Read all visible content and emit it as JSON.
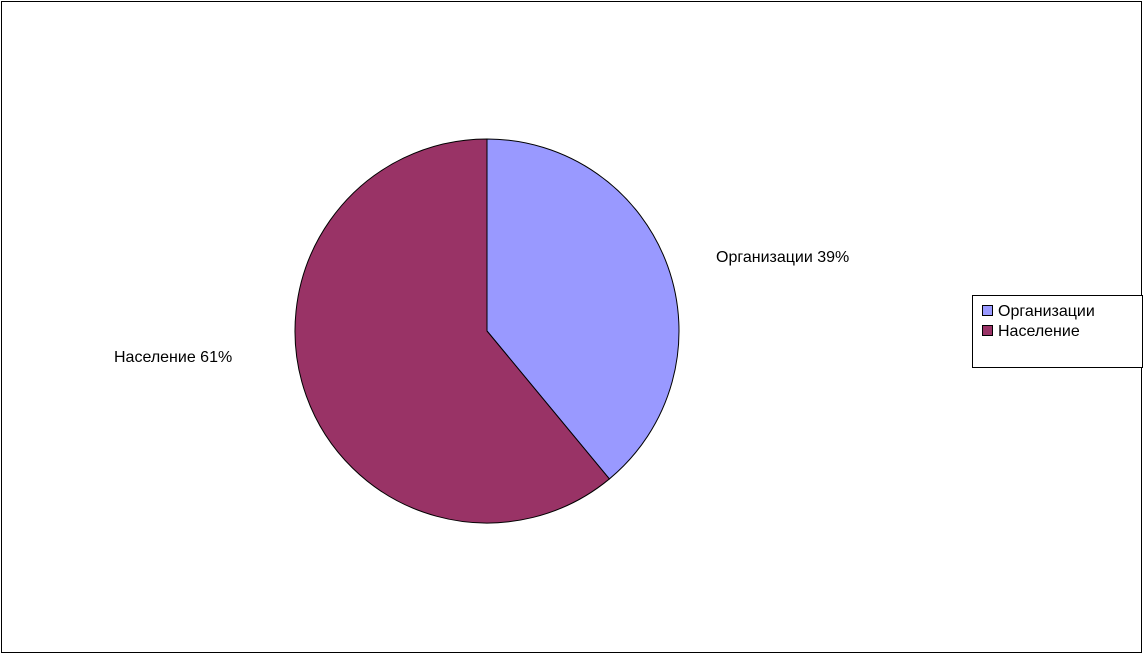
{
  "chart_data": {
    "type": "pie",
    "title": "",
    "slices": [
      {
        "label": "Организации",
        "value": 39,
        "color": "#9999ff",
        "data_label": "Организации  39%"
      },
      {
        "label": "Население",
        "value": 61,
        "color": "#993366",
        "data_label": "Население  61%"
      }
    ],
    "start_angle_deg": 0,
    "direction": "clockwise",
    "legend": {
      "position": "right",
      "items": [
        "Организации",
        "Население"
      ]
    }
  }
}
